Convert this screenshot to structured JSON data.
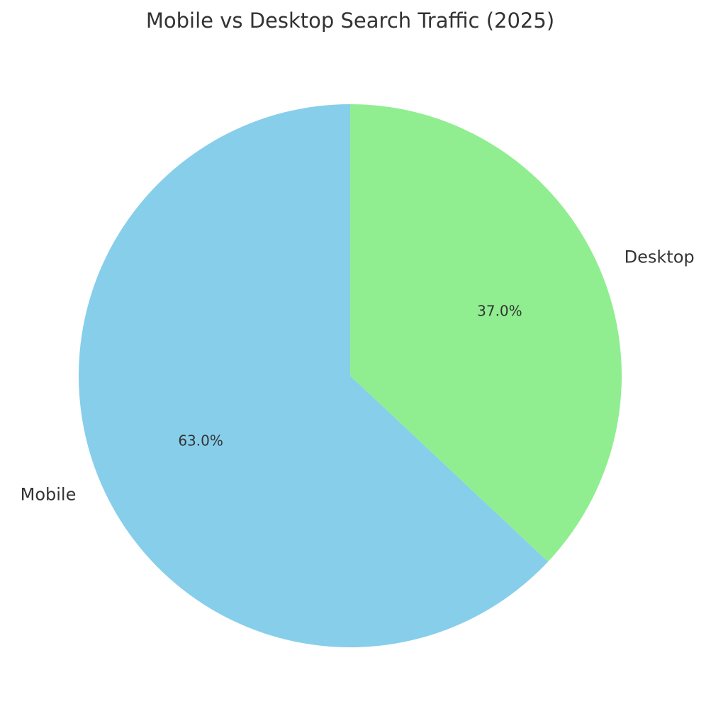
{
  "chart_data": {
    "type": "pie",
    "title": "Mobile vs Desktop Search Traffic (2025)",
    "categories": [
      "Mobile",
      "Desktop"
    ],
    "values": [
      63.0,
      37.0
    ],
    "value_labels": [
      "63.0%",
      "37.0%"
    ],
    "colors": [
      "#87CEEB",
      "#90EE90"
    ],
    "start_angle_deg": 90,
    "direction": "counterclockwise",
    "legend": "none"
  }
}
